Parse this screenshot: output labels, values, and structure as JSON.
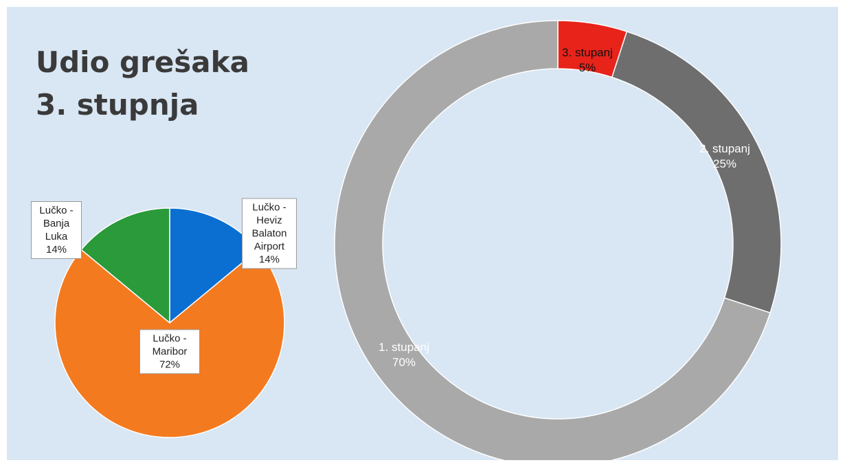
{
  "title": "Udio grešaka 3. stupnja",
  "chart_data": [
    {
      "type": "pie",
      "categories": [
        "Lučko - Heviz Balaton Airport",
        "Lučko - Maribor",
        "Lučko - Banja Luka"
      ],
      "values": [
        14,
        72,
        14
      ],
      "value_labels": [
        "14%",
        "72%",
        "14%"
      ],
      "colors": [
        "#0a6fd1",
        "#f47a20",
        "#2a9a3a"
      ]
    },
    {
      "type": "donut",
      "categories": [
        "3. stupanj",
        "2. stupanj",
        "1. stupanj"
      ],
      "values": [
        5,
        25,
        70
      ],
      "value_labels": [
        "5%",
        "25%",
        "70%"
      ],
      "colors": [
        "#e8231a",
        "#6e6e6e",
        "#a9a9a9"
      ]
    }
  ]
}
